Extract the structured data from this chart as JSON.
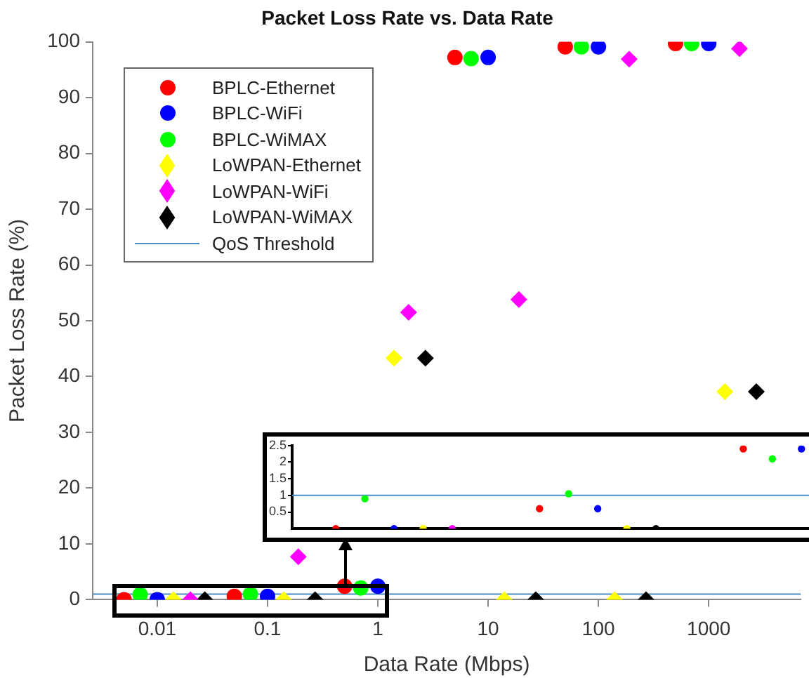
{
  "chart_data": [
    {
      "type": "scatter",
      "title": "Packet Loss Rate vs. Data Rate",
      "xlabel": "Data Rate (Mbps)",
      "ylabel": "Packet Loss Rate (%)",
      "log": "x",
      "xlim": [
        0.0026,
        6800
      ],
      "xticks": [
        0.01,
        0.1,
        1,
        10,
        100,
        1000
      ],
      "ylim": [
        0,
        100
      ],
      "yticks": [
        0,
        10,
        20,
        30,
        40,
        50,
        60,
        70,
        80,
        90,
        100
      ],
      "grid": false,
      "legend": "top left",
      "series": [
        {
          "name": "BPLC-Ethernet",
          "color": "#ff0000",
          "marker": "circle",
          "x": [
            0.005,
            0.05,
            0.5,
            5,
            50,
            500
          ],
          "values": [
            0,
            0.6,
            2.4,
            97.2,
            99.1,
            99.7
          ]
        },
        {
          "name": "BPLC-WiFi",
          "color": "#0000ff",
          "marker": "circle",
          "x": [
            0.01,
            0.1,
            1,
            10,
            100,
            1000
          ],
          "values": [
            0,
            0.6,
            2.4,
            97.2,
            99.1,
            99.7
          ]
        },
        {
          "name": "BPLC-WiMAX",
          "color": "#00ff00",
          "marker": "circle",
          "x": [
            0.007,
            0.07,
            0.7,
            7,
            70,
            700
          ],
          "values": [
            0.9,
            1,
            2.1,
            97,
            99.1,
            99.7
          ]
        },
        {
          "name": "LoWPAN-Ethernet",
          "color": "#ffff00",
          "marker": "diamond",
          "x": [
            0.014,
            0.14,
            1.4,
            14,
            140,
            1400
          ],
          "values": [
            0,
            0,
            43.3,
            0,
            0,
            37.3
          ]
        },
        {
          "name": "LoWPAN-WiFi",
          "color": "#ff00ff",
          "marker": "diamond",
          "x": [
            0.02,
            0.19,
            1.9,
            19,
            190,
            1900
          ],
          "values": [
            0,
            7.7,
            51.5,
            53.8,
            96.9,
            98.8
          ]
        },
        {
          "name": "LoWPAN-WiMAX",
          "color": "#000000",
          "marker": "diamond",
          "x": [
            0.027,
            0.27,
            2.7,
            27,
            270,
            2700
          ],
          "values": [
            0,
            0,
            43.3,
            0,
            0,
            37.3
          ]
        }
      ],
      "ref_lines": [
        {
          "axis": "y",
          "value": 1,
          "label": "QoS Threshold",
          "color": "#4a8fc4"
        }
      ]
    },
    {
      "type": "scatter",
      "categories": [
        null,
        null,
        null,
        null,
        null,
        null,
        null,
        null,
        null,
        null,
        null,
        null,
        null,
        null,
        null,
        null,
        null,
        null
      ],
      "ylim": [
        0,
        2.5
      ],
      "yticks": [
        0.5,
        1,
        1.5,
        2,
        2.5
      ],
      "tick_labels": "y",
      "grid": false,
      "series": [
        {
          "color": "#ff0000",
          "marker": "circle",
          "values": [
            null,
            0,
            null,
            null,
            null,
            null,
            null,
            null,
            0.6,
            null,
            null,
            null,
            null,
            null,
            null,
            2.4,
            null,
            null
          ]
        },
        {
          "color": "#0000ff",
          "marker": "circle",
          "values": [
            null,
            null,
            null,
            0,
            null,
            null,
            null,
            null,
            null,
            null,
            0.6,
            null,
            null,
            null,
            null,
            null,
            null,
            2.4
          ]
        },
        {
          "color": "#00ff00",
          "marker": "circle",
          "values": [
            null,
            null,
            0.9,
            null,
            null,
            null,
            null,
            null,
            null,
            1.05,
            null,
            null,
            null,
            null,
            null,
            null,
            2.1,
            null
          ]
        },
        {
          "color": "#ffff00",
          "marker": "circle",
          "values": [
            null,
            null,
            null,
            null,
            0,
            null,
            null,
            null,
            null,
            null,
            null,
            0,
            null,
            null,
            null,
            null,
            null,
            null
          ]
        },
        {
          "color": "#ff00ff",
          "marker": "circle",
          "values": [
            null,
            null,
            null,
            null,
            null,
            0,
            null,
            null,
            null,
            null,
            null,
            null,
            null,
            null,
            null,
            null,
            null,
            null
          ]
        },
        {
          "color": "#000000",
          "marker": "circle",
          "values": [
            null,
            null,
            null,
            null,
            null,
            null,
            null,
            null,
            null,
            null,
            null,
            null,
            0,
            null,
            null,
            null,
            null,
            null
          ]
        }
      ],
      "ref_lines": [
        {
          "axis": "y",
          "value": 1,
          "color": "#4a8fc4"
        }
      ]
    }
  ]
}
